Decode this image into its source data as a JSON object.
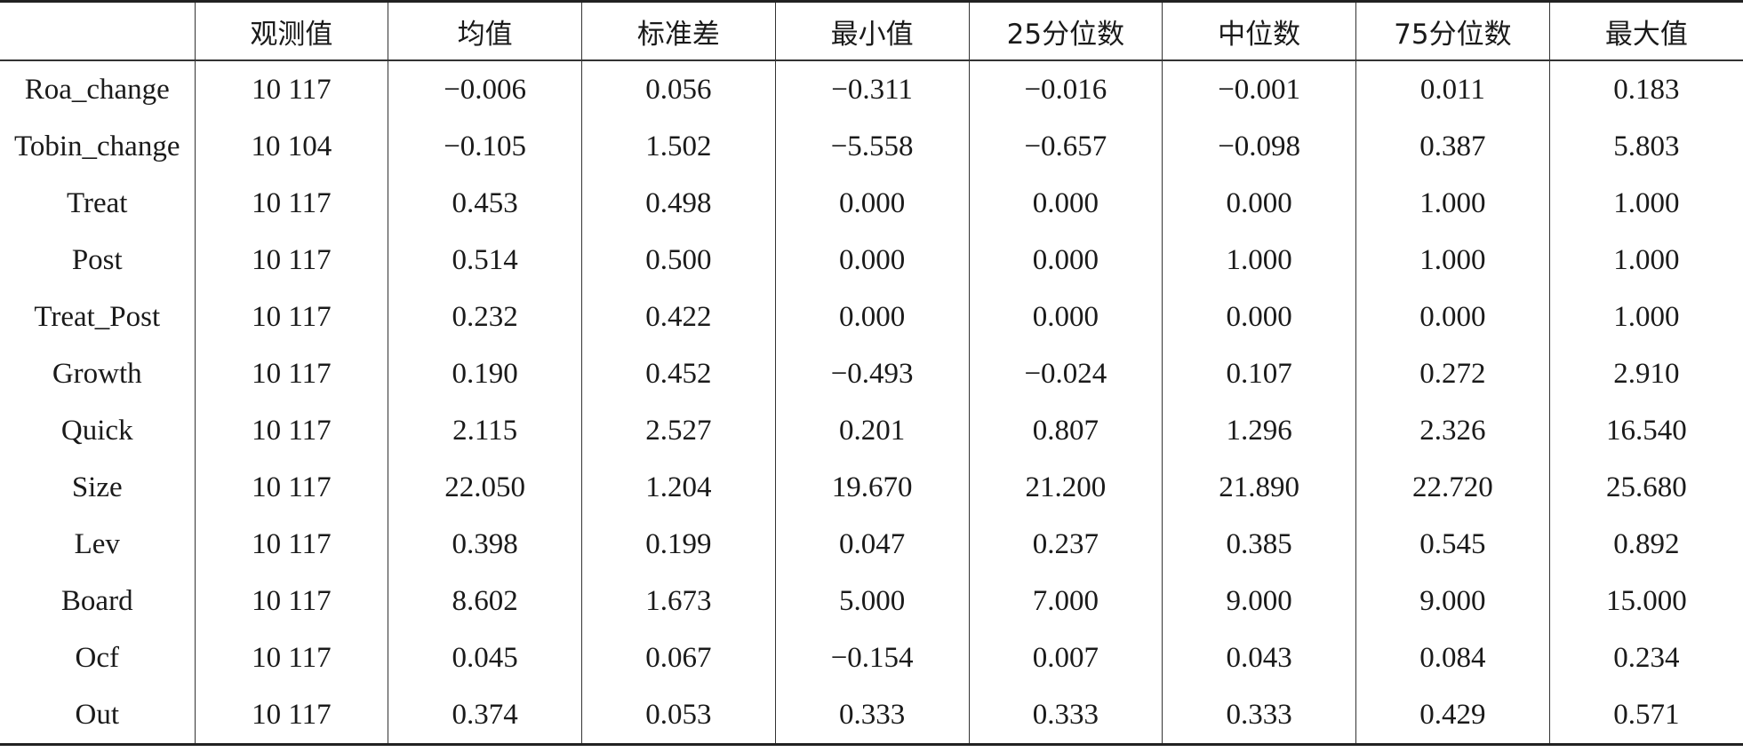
{
  "table": {
    "header": [
      "观测值",
      "均值",
      "标准差",
      "最小值",
      "25分位数",
      "中位数",
      "75分位数",
      "最大值"
    ],
    "rows": [
      [
        "Roa_change",
        "10 117",
        "−0.006",
        "0.056",
        "−0.311",
        "−0.016",
        "−0.001",
        "0.011",
        "0.183"
      ],
      [
        "Tobin_change",
        "10 104",
        "−0.105",
        "1.502",
        "−5.558",
        "−0.657",
        "−0.098",
        "0.387",
        "5.803"
      ],
      [
        "Treat",
        "10 117",
        "0.453",
        "0.498",
        "0.000",
        "0.000",
        "0.000",
        "1.000",
        "1.000"
      ],
      [
        "Post",
        "10 117",
        "0.514",
        "0.500",
        "0.000",
        "0.000",
        "1.000",
        "1.000",
        "1.000"
      ],
      [
        "Treat_Post",
        "10 117",
        "0.232",
        "0.422",
        "0.000",
        "0.000",
        "0.000",
        "0.000",
        "1.000"
      ],
      [
        "Growth",
        "10 117",
        "0.190",
        "0.452",
        "−0.493",
        "−0.024",
        "0.107",
        "0.272",
        "2.910"
      ],
      [
        "Quick",
        "10 117",
        "2.115",
        "2.527",
        "0.201",
        "0.807",
        "1.296",
        "2.326",
        "16.540"
      ],
      [
        "Size",
        "10 117",
        "22.050",
        "1.204",
        "19.670",
        "21.200",
        "21.890",
        "22.720",
        "25.680"
      ],
      [
        "Lev",
        "10 117",
        "0.398",
        "0.199",
        "0.047",
        "0.237",
        "0.385",
        "0.545",
        "0.892"
      ],
      [
        "Board",
        "10 117",
        "8.602",
        "1.673",
        "5.000",
        "7.000",
        "9.000",
        "9.000",
        "15.000"
      ],
      [
        "Ocf",
        "10 117",
        "0.045",
        "0.067",
        "−0.154",
        "0.007",
        "0.043",
        "0.084",
        "0.234"
      ],
      [
        "Out",
        "10 117",
        "0.374",
        "0.053",
        "0.333",
        "0.333",
        "0.333",
        "0.429",
        "0.571"
      ]
    ]
  }
}
